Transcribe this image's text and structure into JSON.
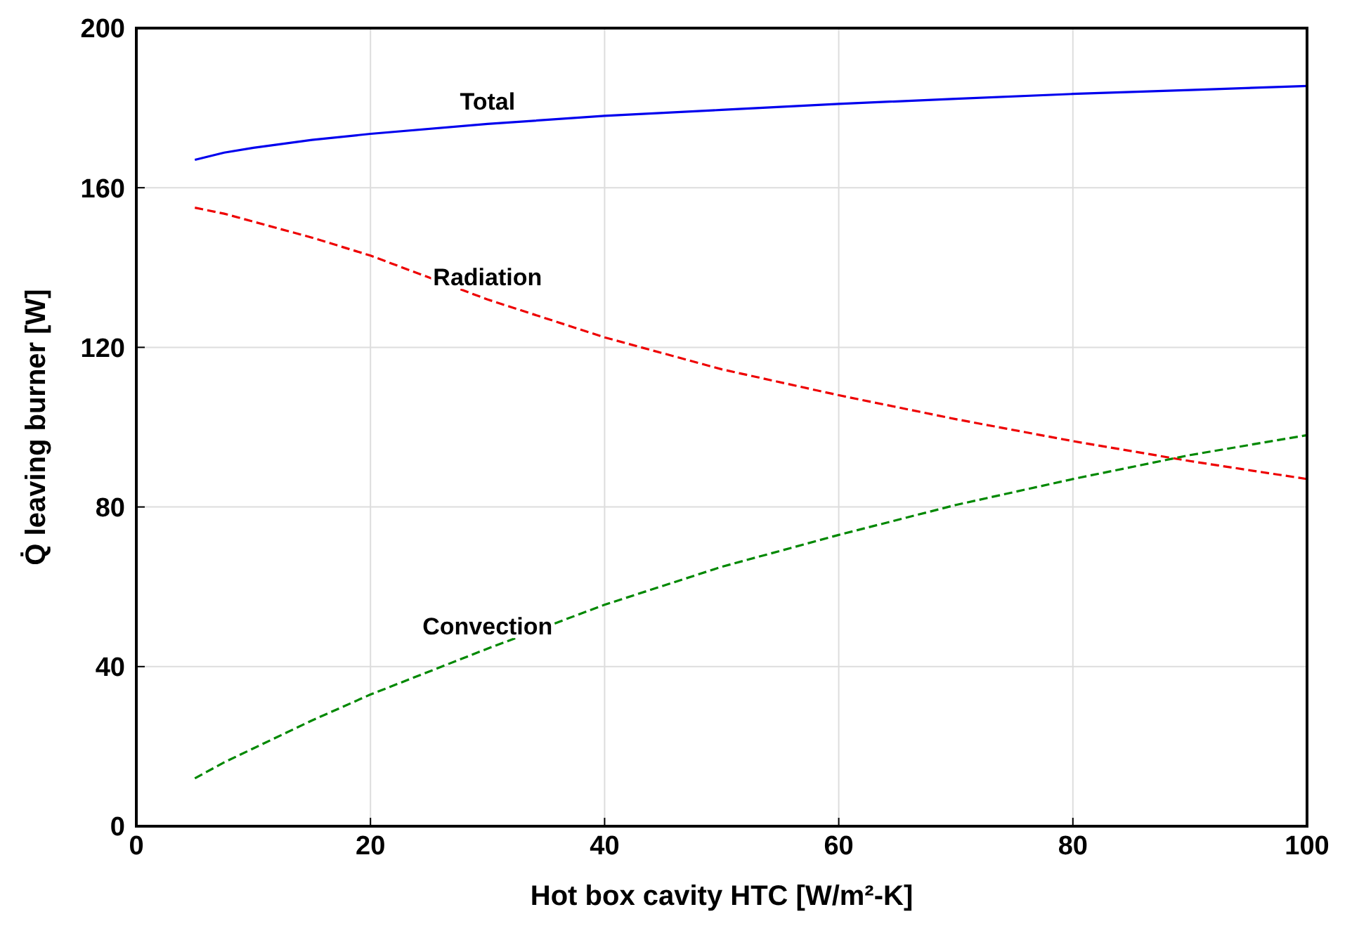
{
  "chart_data": {
    "type": "line",
    "xlabel": "Hot box cavity HTC [W/m²-K]",
    "ylabel": "Q̇ leaving burner [W]",
    "x": [
      5,
      7.5,
      10,
      15,
      20,
      30,
      40,
      50,
      60,
      70,
      80,
      90,
      100
    ],
    "series": [
      {
        "name": "Total",
        "color": "#0000ee",
        "line_style": "solid",
        "values": [
          167,
          168.8,
          170,
          172,
          173.5,
          176,
          178,
          179.5,
          181,
          182.3,
          183.5,
          184.5,
          185.5
        ]
      },
      {
        "name": "Radiation",
        "color": "#ee0000",
        "line_style": "dashed",
        "values": [
          155,
          153.5,
          151.5,
          147.5,
          143,
          132,
          122.5,
          114.5,
          108,
          102,
          96.5,
          91.5,
          87
        ]
      },
      {
        "name": "Convection",
        "color": "#008800",
        "line_style": "dashed",
        "values": [
          12,
          16,
          19.5,
          26.5,
          33,
          44.5,
          55.5,
          65,
          73,
          80.5,
          87,
          93,
          98
        ]
      }
    ],
    "xlim": [
      0,
      100
    ],
    "xticks": [
      0,
      20,
      40,
      60,
      80,
      100
    ],
    "ylim": [
      0,
      200
    ],
    "yticks": [
      0,
      40,
      80,
      120,
      160,
      200
    ],
    "grid": true,
    "legend": false,
    "marker": "none"
  }
}
